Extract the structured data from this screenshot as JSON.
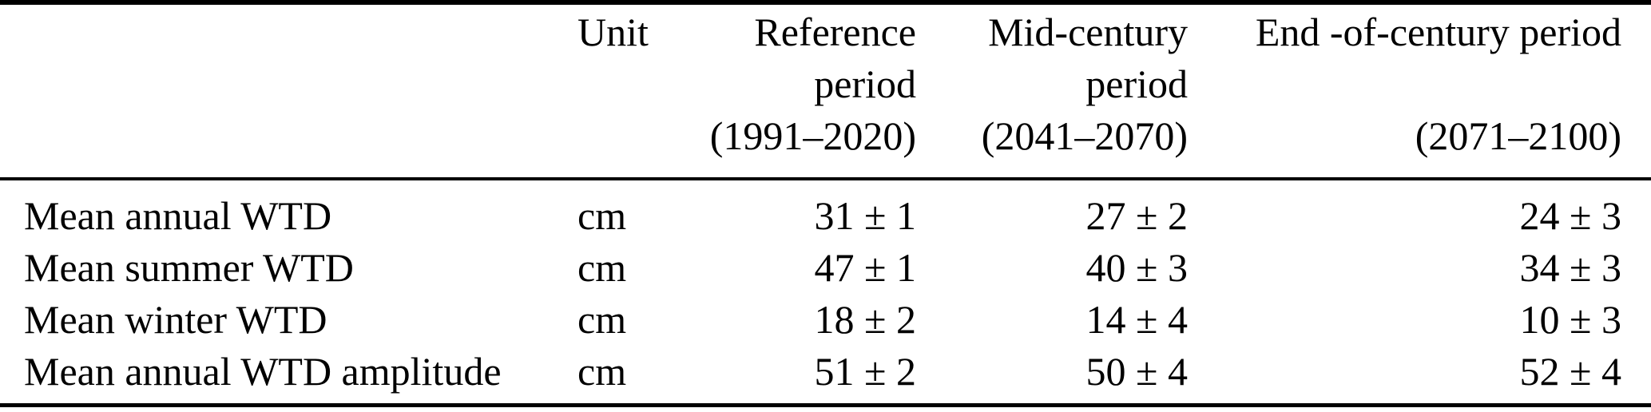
{
  "meta": {
    "type": "paper-table",
    "text_color": "#000000",
    "background_color": "#ffffff",
    "rule_color": "#000000"
  },
  "table": {
    "header": {
      "col_label": [
        "",
        "",
        ""
      ],
      "col_unit": [
        "Unit",
        "",
        ""
      ],
      "col_ref": [
        "Reference",
        "period",
        "(1991–2020)"
      ],
      "col_mid": [
        "Mid-century",
        "period",
        "(2041–2070)"
      ],
      "col_end": [
        "End -of-century period",
        "",
        "(2071–2100)"
      ]
    },
    "rows": [
      {
        "label": "Mean annual WTD",
        "unit": "cm",
        "ref": "31 ± 1",
        "mid": "27 ± 2",
        "end": "24 ± 3"
      },
      {
        "label": "Mean summer WTD",
        "unit": "cm",
        "ref": "47 ± 1",
        "mid": "40 ± 3",
        "end": "34 ± 3"
      },
      {
        "label": "Mean winter WTD",
        "unit": "cm",
        "ref": "18 ± 2",
        "mid": "14 ± 4",
        "end": "10 ± 3"
      },
      {
        "label": "Mean annual WTD amplitude",
        "unit": "cm",
        "ref": "51 ± 2",
        "mid": "50 ± 4",
        "end": "52 ± 4"
      }
    ]
  }
}
